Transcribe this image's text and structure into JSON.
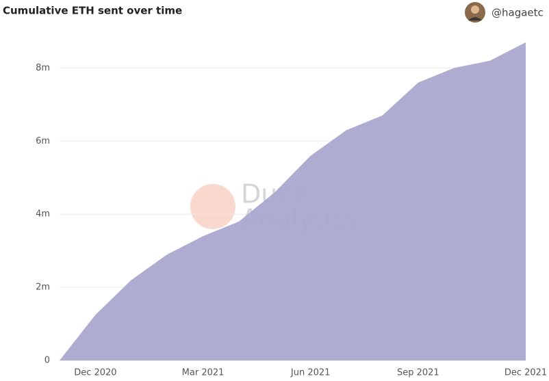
{
  "author": "@hagaetc",
  "chart_data": {
    "type": "area",
    "title": "Cumulative ETH sent over time",
    "watermark": [
      "Dune",
      "Analytics"
    ],
    "x": [
      "Nov 2020",
      "Dec 2020",
      "Jan 2021",
      "Feb 2021",
      "Mar 2021",
      "Apr 2021",
      "May 2021",
      "Jun 2021",
      "Jul 2021",
      "Aug 2021",
      "Sep 2021",
      "Oct 2021",
      "Nov 2021",
      "Dec 2021"
    ],
    "values": [
      0,
      1250000,
      2200000,
      2900000,
      3400000,
      3800000,
      4600000,
      5600000,
      6300000,
      6700000,
      7600000,
      8000000,
      8200000,
      8700000
    ],
    "color": "#aaa8cd",
    "xticks": [
      "Dec 2020",
      "Mar 2021",
      "Jun 2021",
      "Sep 2021",
      "Dec 2021"
    ],
    "ylim": [
      0,
      8700000
    ],
    "yticks": [
      {
        "value": 0,
        "label": "0"
      },
      {
        "value": 2000000,
        "label": "2m"
      },
      {
        "value": 4000000,
        "label": "4m"
      },
      {
        "value": 6000000,
        "label": "6m"
      },
      {
        "value": 8000000,
        "label": "8m"
      }
    ],
    "grid": true
  }
}
